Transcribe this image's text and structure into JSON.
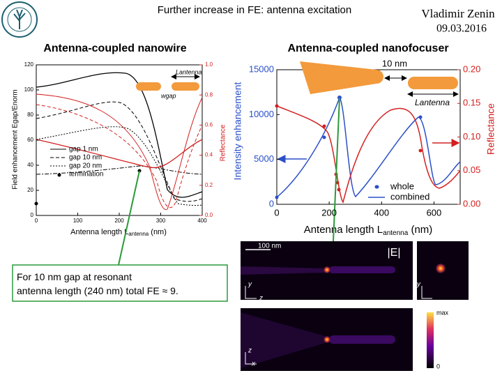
{
  "header": {
    "title": "Further increase in FE: antenna excitation",
    "author": "Vladimir Zenin",
    "date": "09.03.2016"
  },
  "left_panel": {
    "heading": "Antenna-coupled nanowire",
    "y_label": "Field enhancement Egap/Enorm",
    "y2_label": "Reflectance",
    "x_label": [
      "Antenna length L",
      "antenna",
      " (nm)"
    ],
    "xlim": [
      0,
      400
    ],
    "xticks": [
      0,
      100,
      200,
      300,
      400
    ],
    "ylim": [
      0,
      120
    ],
    "yticks": [
      0,
      20,
      40,
      60,
      80,
      100,
      120
    ],
    "y2lim": [
      0,
      1
    ],
    "y2ticks": [
      {
        "value": 0,
        "label": "0.0"
      },
      {
        "value": 0.2,
        "label": "0.2"
      },
      {
        "value": 0.4,
        "label": "0.4"
      },
      {
        "value": 0.6,
        "label": "0.6"
      },
      {
        "value": 0.8,
        "label": "0.8"
      },
      {
        "value": 1,
        "label": "1.0"
      }
    ],
    "legend": [
      "gap 1 nm",
      "gap 10 nm",
      "gap 20 nm",
      "termination"
    ],
    "inset": [
      "Lantenna",
      "wgap"
    ]
  },
  "right_panel": {
    "heading": "Antenna-coupled nanofocuser",
    "y_label": "Intensity enhancement",
    "y2_label": "Reflectance",
    "x_label": [
      "Antenna length L",
      "antenna",
      " (nm)"
    ],
    "xlim": [
      0,
      700
    ],
    "xticks": [
      0,
      200,
      400,
      600
    ],
    "ylim": [
      0,
      15000
    ],
    "yticks": [
      0,
      5000,
      10000,
      15000
    ],
    "y2lim": [
      0,
      0.2
    ],
    "y2ticks": [
      {
        "value": 0,
        "label": "0.00"
      },
      {
        "value": 0.05,
        "label": "0.05"
      },
      {
        "value": 0.1,
        "label": "0.10"
      },
      {
        "value": 0.15,
        "label": "0.15"
      },
      {
        "value": 0.2,
        "label": "0.20"
      }
    ],
    "legend": [
      "whole",
      "combined"
    ],
    "inset": [
      "10 nm",
      "Lantenna"
    ]
  },
  "note": "For 10 nm gap at resonant antenna length (240 nm) total FE ≈ 9.",
  "field_maps": {
    "scale": "100 nm",
    "label": "|E|",
    "colorbar_max": "max",
    "colorbar_min": "0",
    "axis_y": "y",
    "axis_z": "z",
    "axis_x": "x"
  }
}
